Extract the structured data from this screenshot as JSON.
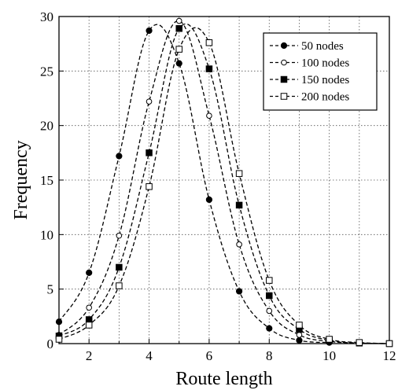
{
  "chart_data": {
    "type": "line",
    "title": "",
    "xlabel": "Route length",
    "ylabel": "Frequency",
    "xlim": [
      1,
      12
    ],
    "ylim": [
      0,
      30
    ],
    "xticks": [
      2,
      4,
      6,
      8,
      10,
      12
    ],
    "yticks": [
      0,
      5,
      10,
      15,
      20,
      25,
      30
    ],
    "grid": true,
    "legend_position": "top-right",
    "series": [
      {
        "name": "50 nodes",
        "marker": "filled-circle",
        "x": [
          1,
          2,
          3,
          4,
          5,
          6,
          7,
          8,
          9,
          10
        ],
        "y": [
          2.0,
          6.5,
          17.2,
          28.7,
          25.7,
          13.2,
          4.8,
          1.4,
          0.3,
          0.1
        ]
      },
      {
        "name": "100 nodes",
        "marker": "open-circle",
        "x": [
          1,
          2,
          3,
          4,
          5,
          6,
          7,
          8,
          9,
          10,
          11,
          12
        ],
        "y": [
          0.8,
          3.3,
          9.9,
          22.2,
          29.6,
          20.9,
          9.1,
          3.0,
          0.8,
          0.2,
          0.05,
          0.0
        ]
      },
      {
        "name": "150 nodes",
        "marker": "filled-square",
        "x": [
          1,
          2,
          3,
          4,
          5,
          6,
          7,
          8,
          9,
          10,
          11,
          12
        ],
        "y": [
          0.7,
          2.2,
          7.0,
          17.5,
          28.9,
          25.2,
          12.7,
          4.4,
          1.3,
          0.3,
          0.05,
          0.0
        ]
      },
      {
        "name": "200 nodes",
        "marker": "open-square",
        "x": [
          1,
          2,
          3,
          4,
          5,
          6,
          7,
          8,
          9,
          10,
          11,
          12
        ],
        "y": [
          0.4,
          1.7,
          5.3,
          14.4,
          27.0,
          27.6,
          15.6,
          5.8,
          1.7,
          0.4,
          0.1,
          0.0
        ]
      }
    ]
  }
}
